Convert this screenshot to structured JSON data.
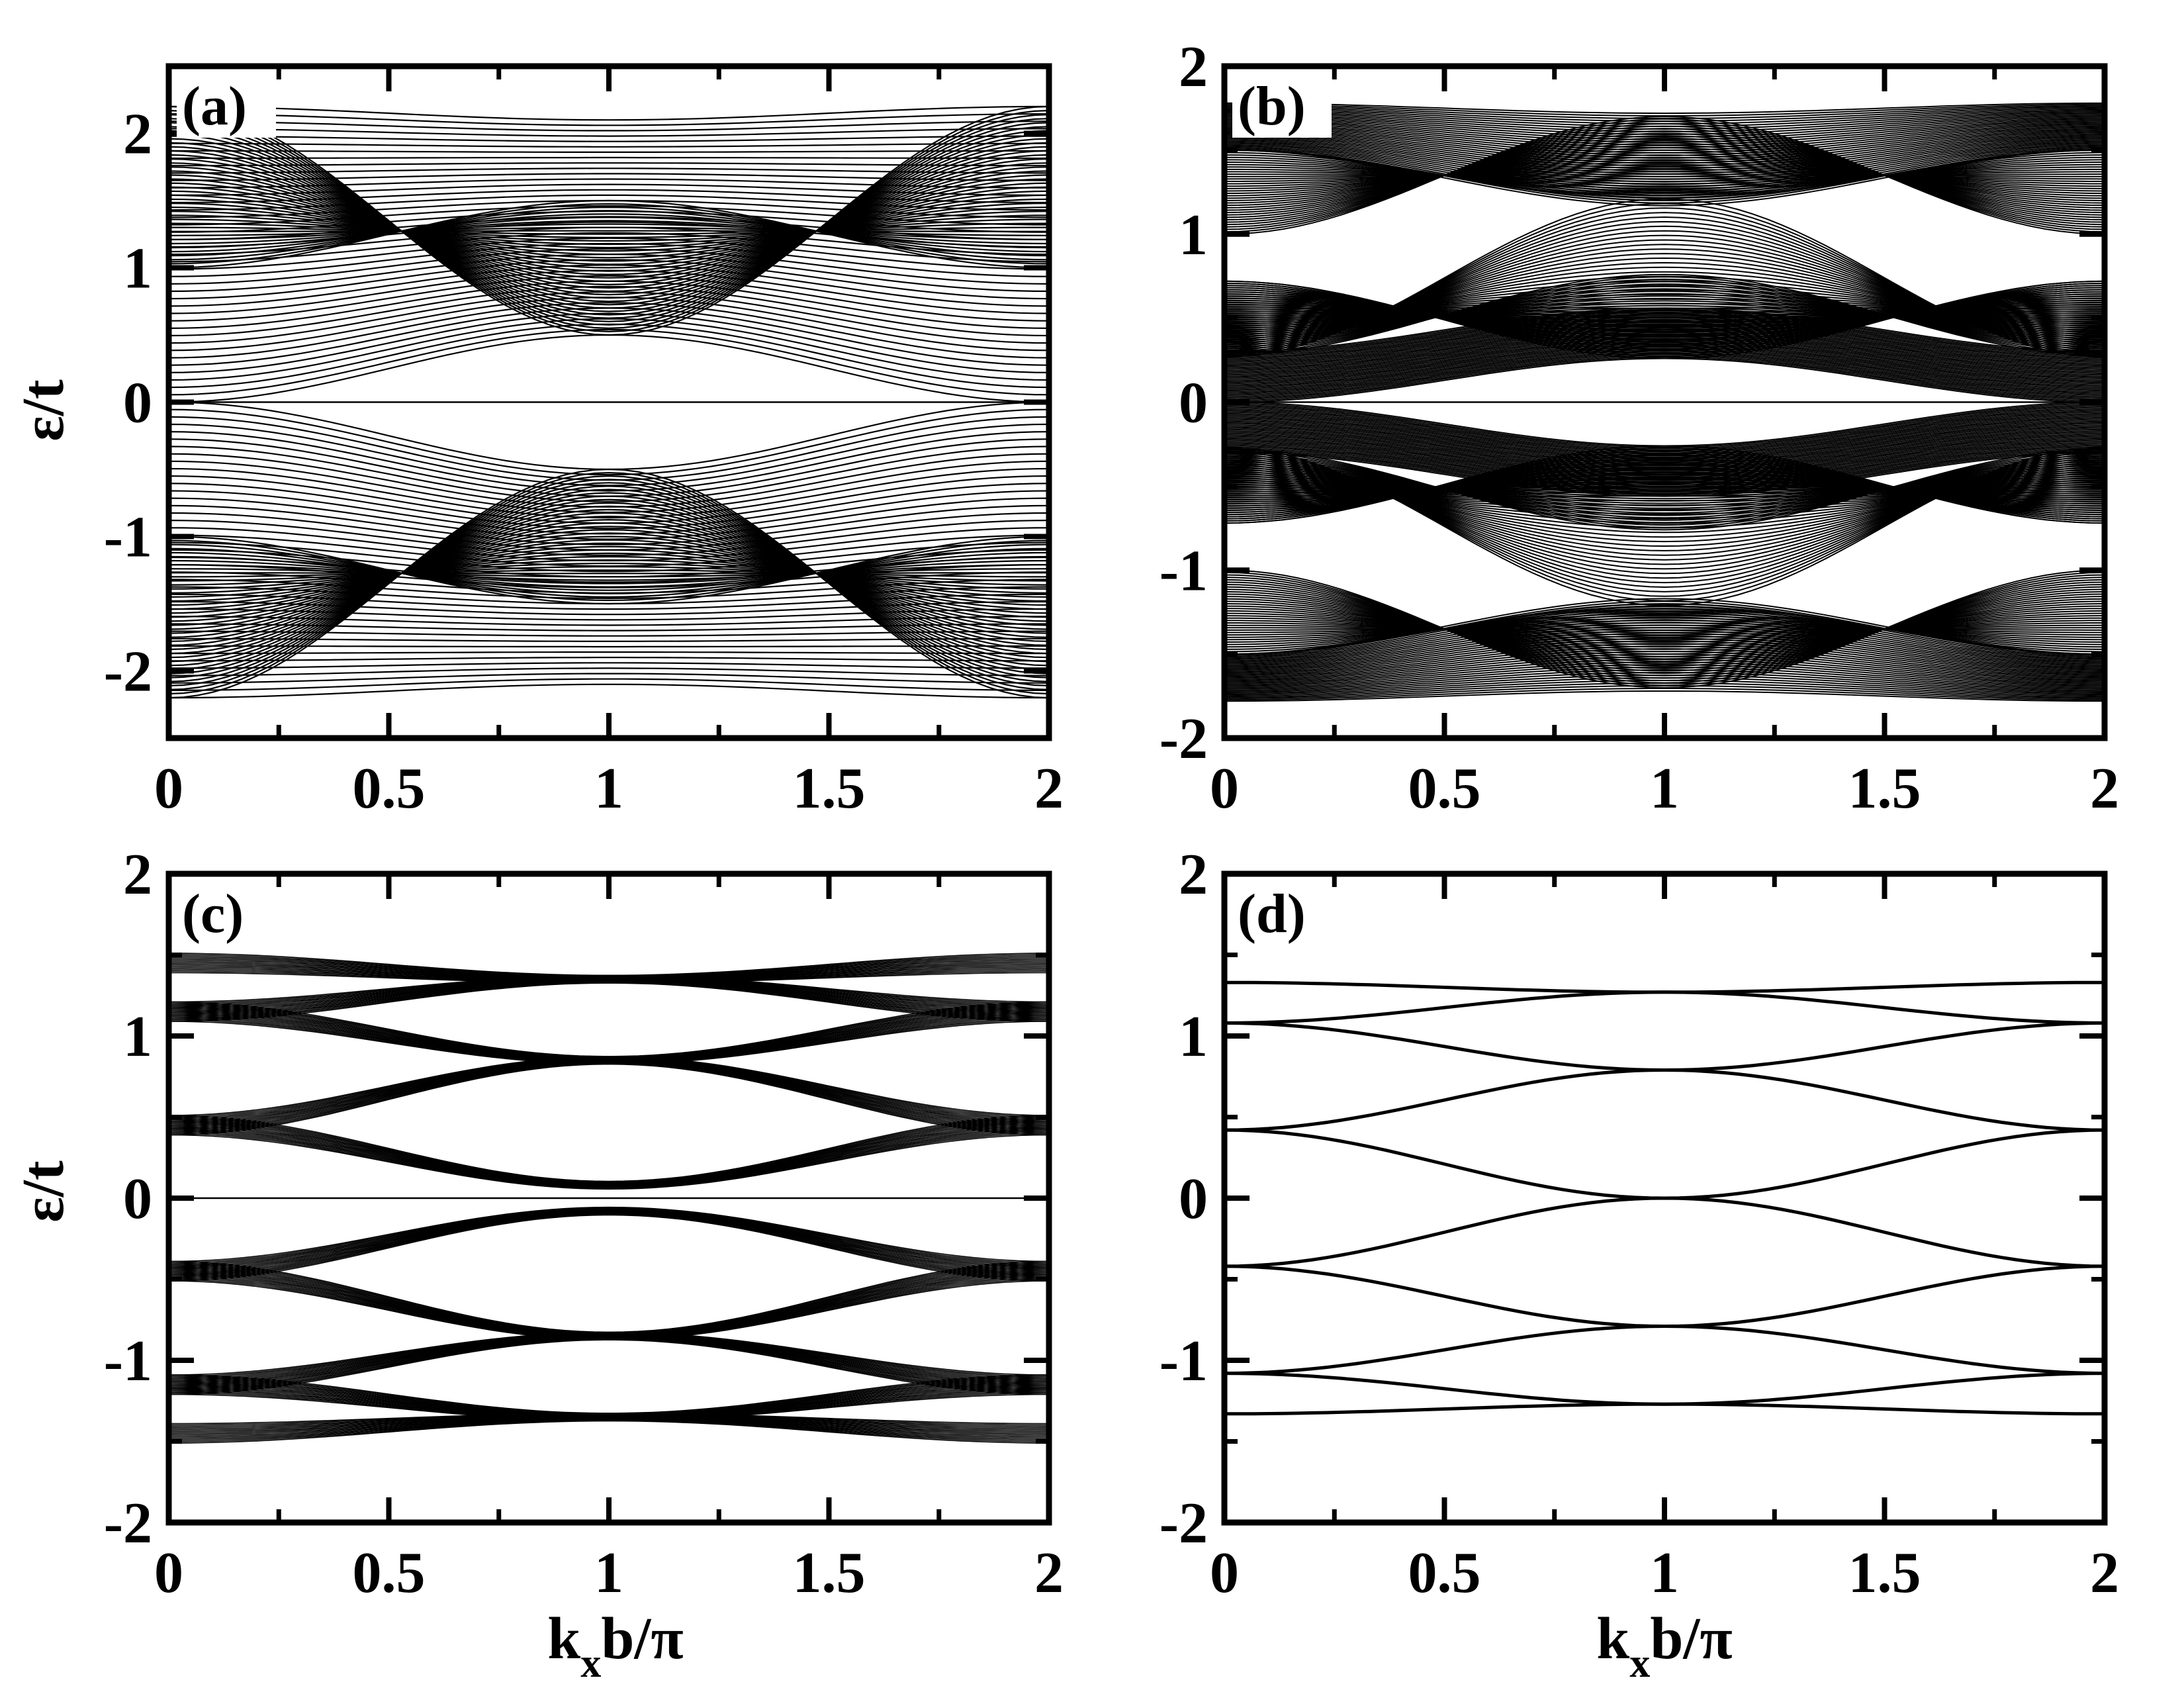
{
  "figure": {
    "ylabel": "ε/t",
    "xlabel_parts": {
      "main_k": "k",
      "sub": "x",
      "rest": "b/π"
    }
  },
  "chart_data": [
    {
      "type": "line",
      "panel": "(a)",
      "xlim": [
        0,
        2
      ],
      "ylim": [
        -2.5,
        2.5
      ],
      "xticks": [
        0,
        0.5,
        1,
        1.5,
        2
      ],
      "xtick_labels": [
        "0",
        "0.5",
        "1",
        "1.5",
        "2"
      ],
      "yticks": [
        -2,
        -1,
        0,
        1,
        2
      ],
      "ytick_labels": [
        "-2",
        "-1",
        "0",
        "1",
        "2"
      ],
      "ylabel": "ε/t",
      "xlabel": "",
      "bands": {
        "outer_k0": 2.2,
        "outer_k1": 2.1,
        "outer_min": 0.0,
        "flat_band": 0,
        "level_count": 40
      }
    },
    {
      "type": "line",
      "panel": "(b)",
      "xlim": [
        0,
        2
      ],
      "ylim": [
        -2,
        2
      ],
      "xticks": [
        0,
        0.5,
        1,
        1.5,
        2
      ],
      "xtick_labels": [
        "0",
        "0.5",
        "1",
        "1.5",
        "2"
      ],
      "yticks": [
        -2,
        -1,
        0,
        1,
        2
      ],
      "ytick_labels": [
        "-2",
        "-1",
        "0",
        "1",
        "2"
      ],
      "ylabel": "",
      "xlabel": "",
      "bands": {
        "outer_k0": 1.78,
        "outer_k1": 1.72,
        "mid_k0": 0.72,
        "mid_k1": 0.26,
        "flat_band": 0,
        "level_count": 35
      }
    },
    {
      "type": "line",
      "panel": "(c)",
      "xlim": [
        0,
        2
      ],
      "ylim": [
        -2,
        2
      ],
      "xticks": [
        0,
        0.5,
        1,
        1.5,
        2
      ],
      "xtick_labels": [
        "0",
        "0.5",
        "1",
        "1.5",
        "2"
      ],
      "yticks": [
        -2,
        -1,
        0,
        1,
        2
      ],
      "ytick_labels": [
        "-2",
        "-1",
        "0",
        "1",
        "2"
      ],
      "ylabel": "ε/t",
      "xlabel": "k_x b/π",
      "bands": {
        "crossings_k1": [
          1.35,
          0.85,
          0.08
        ],
        "edges_k0": [
          1.45,
          1.15,
          0.45
        ],
        "flat_band": 0,
        "band_width": 0.12
      }
    },
    {
      "type": "line",
      "panel": "(d)",
      "xlim": [
        0,
        2
      ],
      "ylim": [
        -2,
        2
      ],
      "xticks": [
        0,
        0.5,
        1,
        1.5,
        2
      ],
      "xtick_labels": [
        "0",
        "0.5",
        "1",
        "1.5",
        "2"
      ],
      "yticks": [
        -2,
        -1,
        0,
        1,
        2
      ],
      "ytick_labels": [
        "-2",
        "-1",
        "0",
        "1",
        "2"
      ],
      "ylabel": "",
      "xlabel": "k_x b/π",
      "bands": {
        "lines": [
          [
            1.33,
            1.27
          ],
          [
            1.08,
            1.27
          ],
          [
            1.08,
            0.79
          ],
          [
            0.42,
            0.79
          ],
          [
            0.42,
            0.0
          ],
          [
            -0.42,
            0.0
          ],
          [
            -0.42,
            -0.79
          ],
          [
            -1.08,
            -0.79
          ],
          [
            -1.08,
            -1.27
          ],
          [
            -1.33,
            -1.27
          ]
        ]
      }
    }
  ]
}
